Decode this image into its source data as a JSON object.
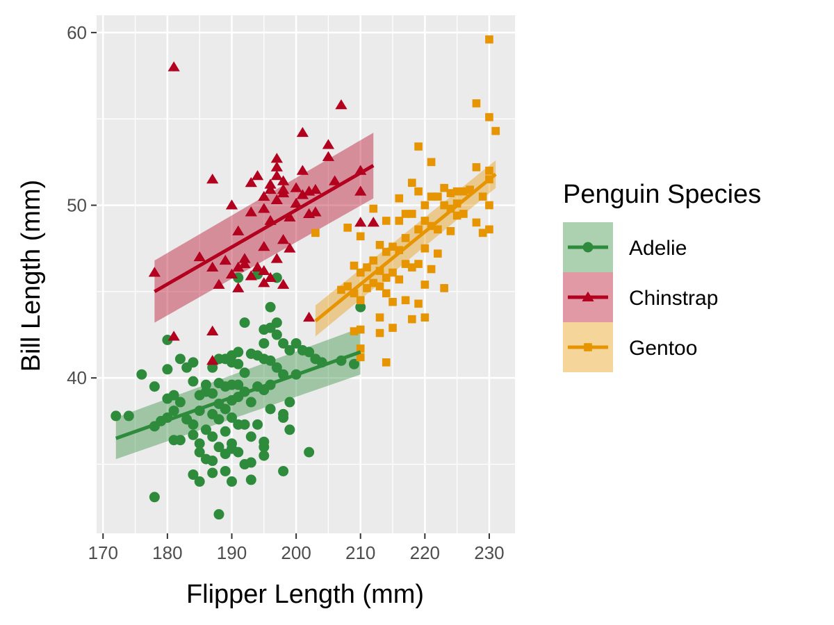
{
  "chart_data": {
    "type": "scatter",
    "xlabel": "Flipper Length (mm)",
    "ylabel": "Bill Length (mm)",
    "xlim": [
      169,
      234
    ],
    "ylim": [
      31,
      61
    ],
    "x_ticks": [
      170,
      180,
      190,
      200,
      210,
      220,
      230
    ],
    "y_ticks": [
      40,
      50,
      60
    ],
    "grid": true,
    "panel_background": "#EBEBEB",
    "legend": {
      "title": "Penguin Species",
      "position": "right"
    },
    "series": [
      {
        "name": "Adelie",
        "color": "#2E8B3C",
        "marker": "circle",
        "trend": {
          "x": [
            172,
            210
          ],
          "y": [
            36.5,
            41.5
          ],
          "ci_lo": [
            35.3,
            40.2
          ],
          "ci_hi": [
            37.7,
            42.9
          ]
        },
        "points": [
          [
            172,
            37.8
          ],
          [
            174,
            37.8
          ],
          [
            176,
            40.2
          ],
          [
            178,
            39.5
          ],
          [
            178,
            37.2
          ],
          [
            178,
            33.1
          ],
          [
            179,
            37.5
          ],
          [
            180,
            40.5
          ],
          [
            180,
            42.2
          ],
          [
            180,
            38.8
          ],
          [
            180,
            37.7
          ],
          [
            181,
            39.0
          ],
          [
            181,
            38.1
          ],
          [
            181,
            36.4
          ],
          [
            182,
            41.1
          ],
          [
            182,
            38.6
          ],
          [
            182,
            36.4
          ],
          [
            183,
            40.6
          ],
          [
            183,
            37.6
          ],
          [
            184,
            40.9
          ],
          [
            184,
            39.8
          ],
          [
            184,
            37.3
          ],
          [
            184,
            36.7
          ],
          [
            184,
            34.4
          ],
          [
            185,
            39.0
          ],
          [
            185,
            38.1
          ],
          [
            185,
            36.2
          ],
          [
            185,
            35.7
          ],
          [
            185,
            34.0
          ],
          [
            186,
            39.6
          ],
          [
            186,
            39.2
          ],
          [
            186,
            37.0
          ],
          [
            186,
            35.3
          ],
          [
            187,
            40.6
          ],
          [
            187,
            39.1
          ],
          [
            187,
            37.9
          ],
          [
            187,
            36.6
          ],
          [
            187,
            35.2
          ],
          [
            187,
            34.5
          ],
          [
            188,
            41.1
          ],
          [
            188,
            39.7
          ],
          [
            188,
            38.5
          ],
          [
            188,
            37.6
          ],
          [
            188,
            36.0
          ],
          [
            188,
            32.1
          ],
          [
            189,
            41.1
          ],
          [
            189,
            39.5
          ],
          [
            189,
            38.2
          ],
          [
            189,
            36.9
          ],
          [
            189,
            35.6
          ],
          [
            189,
            34.6
          ],
          [
            190,
            41.3
          ],
          [
            190,
            40.9
          ],
          [
            190,
            39.6
          ],
          [
            190,
            38.7
          ],
          [
            190,
            37.7
          ],
          [
            190,
            36.2
          ],
          [
            190,
            35.9
          ],
          [
            190,
            34.0
          ],
          [
            191,
            41.5
          ],
          [
            191,
            40.8
          ],
          [
            191,
            39.6
          ],
          [
            191,
            38.9
          ],
          [
            191,
            37.3
          ],
          [
            191,
            35.7
          ],
          [
            191,
            45.8
          ],
          [
            192,
            43.2
          ],
          [
            192,
            40.3
          ],
          [
            192,
            39.2
          ],
          [
            192,
            37.3
          ],
          [
            192,
            35.0
          ],
          [
            193,
            41.4
          ],
          [
            193,
            38.6
          ],
          [
            193,
            36.6
          ],
          [
            193,
            35.1
          ],
          [
            193,
            34.1
          ],
          [
            194,
            41.3
          ],
          [
            194,
            39.5
          ],
          [
            194,
            37.3
          ],
          [
            194,
            46.0
          ],
          [
            195,
            42.8
          ],
          [
            195,
            42.0
          ],
          [
            195,
            41.1
          ],
          [
            195,
            39.3
          ],
          [
            195,
            36.3
          ],
          [
            195,
            35.5
          ],
          [
            195,
            36.0
          ],
          [
            196,
            44.1
          ],
          [
            196,
            42.9
          ],
          [
            196,
            41.0
          ],
          [
            196,
            39.6
          ],
          [
            196,
            38.2
          ],
          [
            197,
            43.2
          ],
          [
            197,
            42.5
          ],
          [
            197,
            40.6
          ],
          [
            197,
            45.8
          ],
          [
            198,
            42.0
          ],
          [
            198,
            40.2
          ],
          [
            198,
            37.9
          ],
          [
            198,
            37.7
          ],
          [
            198,
            34.6
          ],
          [
            199,
            41.6
          ],
          [
            199,
            38.6
          ],
          [
            199,
            37.0
          ],
          [
            200,
            42.0
          ],
          [
            200,
            40.2
          ],
          [
            201,
            41.6
          ],
          [
            202,
            41.5
          ],
          [
            202,
            35.7
          ],
          [
            203,
            41.1
          ],
          [
            204,
            40.9
          ],
          [
            207,
            41.0
          ],
          [
            209,
            40.8
          ],
          [
            210,
            44.1
          ]
        ]
      },
      {
        "name": "Chinstrap",
        "color": "#B2001E",
        "marker": "triangle",
        "trend": {
          "x": [
            178,
            212
          ],
          "y": [
            45.0,
            52.3
          ],
          "ci_lo": [
            43.2,
            50.4
          ],
          "ci_hi": [
            46.8,
            54.2
          ]
        },
        "points": [
          [
            178,
            46.1
          ],
          [
            181,
            58.0
          ],
          [
            181,
            42.4
          ],
          [
            185,
            47.0
          ],
          [
            187,
            51.5
          ],
          [
            187,
            46.4
          ],
          [
            187,
            42.7
          ],
          [
            187,
            41.0
          ],
          [
            188,
            45.4
          ],
          [
            189,
            46.8
          ],
          [
            190,
            50.0
          ],
          [
            190,
            46.0
          ],
          [
            191,
            48.5
          ],
          [
            191,
            46.4
          ],
          [
            191,
            45.2
          ],
          [
            192,
            46.6
          ],
          [
            192,
            46.9
          ],
          [
            193,
            51.3
          ],
          [
            193,
            49.6
          ],
          [
            193,
            45.9
          ],
          [
            194,
            51.7
          ],
          [
            194,
            46.4
          ],
          [
            195,
            50.5
          ],
          [
            195,
            49.8
          ],
          [
            195,
            47.6
          ],
          [
            195,
            45.5
          ],
          [
            195,
            46.2
          ],
          [
            196,
            51.2
          ],
          [
            196,
            50.9
          ],
          [
            196,
            45.8
          ],
          [
            196,
            49.1
          ],
          [
            197,
            52.7
          ],
          [
            197,
            52.2
          ],
          [
            197,
            51.7
          ],
          [
            197,
            50.3
          ],
          [
            197,
            46.9
          ],
          [
            198,
            51.4
          ],
          [
            198,
            50.7
          ],
          [
            198,
            48.0
          ],
          [
            198,
            45.4
          ],
          [
            198,
            50.9
          ],
          [
            199,
            49.3
          ],
          [
            199,
            47.5
          ],
          [
            200,
            51.0
          ],
          [
            200,
            50.1
          ],
          [
            201,
            54.2
          ],
          [
            201,
            50.6
          ],
          [
            201,
            52.0
          ],
          [
            202,
            50.8
          ],
          [
            202,
            49.5
          ],
          [
            202,
            43.5
          ],
          [
            203,
            50.9
          ],
          [
            203,
            49.6
          ],
          [
            205,
            53.5
          ],
          [
            205,
            52.8
          ],
          [
            206,
            51.4
          ],
          [
            207,
            55.8
          ],
          [
            210,
            52.0
          ],
          [
            210,
            50.8
          ],
          [
            210,
            49.0
          ],
          [
            212,
            49.0
          ]
        ]
      },
      {
        "name": "Gentoo",
        "color": "#E69500",
        "marker": "square",
        "trend": {
          "x": [
            203,
            231
          ],
          "y": [
            43.3,
            51.8
          ],
          "ci_lo": [
            42.4,
            51.0
          ],
          "ci_hi": [
            44.2,
            52.6
          ]
        },
        "points": [
          [
            203,
            48.4
          ],
          [
            207,
            45.1
          ],
          [
            208,
            48.7
          ],
          [
            208,
            45.3
          ],
          [
            209,
            46.5
          ],
          [
            209,
            44.9
          ],
          [
            209,
            42.7
          ],
          [
            210,
            48.2
          ],
          [
            210,
            46.1
          ],
          [
            210,
            44.5
          ],
          [
            210,
            42.8
          ],
          [
            210,
            41.7
          ],
          [
            210,
            41.2
          ],
          [
            211,
            46.4
          ],
          [
            211,
            45.2
          ],
          [
            212,
            49.8
          ],
          [
            212,
            46.8
          ],
          [
            212,
            45.5
          ],
          [
            213,
            47.7
          ],
          [
            213,
            46.2
          ],
          [
            213,
            45.3
          ],
          [
            213,
            43.5
          ],
          [
            213,
            42.6
          ],
          [
            214,
            49.1
          ],
          [
            214,
            47.3
          ],
          [
            214,
            45.8
          ],
          [
            214,
            44.9
          ],
          [
            214,
            40.9
          ],
          [
            215,
            47.6
          ],
          [
            215,
            46.1
          ],
          [
            215,
            44.4
          ],
          [
            215,
            42.9
          ],
          [
            216,
            50.4
          ],
          [
            216,
            49.1
          ],
          [
            216,
            47.4
          ],
          [
            216,
            45.7
          ],
          [
            217,
            49.5
          ],
          [
            217,
            48.1
          ],
          [
            217,
            46.6
          ],
          [
            217,
            44.5
          ],
          [
            218,
            51.3
          ],
          [
            218,
            49.5
          ],
          [
            218,
            46.4
          ],
          [
            218,
            43.4
          ],
          [
            219,
            53.4
          ],
          [
            219,
            50.8
          ],
          [
            219,
            48.6
          ],
          [
            219,
            46.6
          ],
          [
            219,
            44.3
          ],
          [
            220,
            50.0
          ],
          [
            220,
            49.1
          ],
          [
            220,
            47.5
          ],
          [
            220,
            45.4
          ],
          [
            220,
            43.5
          ],
          [
            221,
            52.5
          ],
          [
            221,
            50.5
          ],
          [
            221,
            48.8
          ],
          [
            221,
            46.3
          ],
          [
            222,
            50.5
          ],
          [
            222,
            48.6
          ],
          [
            222,
            47.2
          ],
          [
            223,
            51.0
          ],
          [
            223,
            50.0
          ],
          [
            223,
            45.2
          ],
          [
            224,
            50.7
          ],
          [
            224,
            49.8
          ],
          [
            224,
            48.5
          ],
          [
            225,
            50.8
          ],
          [
            225,
            50.1
          ],
          [
            225,
            49.4
          ],
          [
            226,
            50.8
          ],
          [
            226,
            49.5
          ],
          [
            227,
            50.9
          ],
          [
            228,
            55.9
          ],
          [
            228,
            52.2
          ],
          [
            228,
            49.0
          ],
          [
            229,
            50.5
          ],
          [
            229,
            48.4
          ],
          [
            230,
            59.6
          ],
          [
            230,
            55.1
          ],
          [
            230,
            52.0
          ],
          [
            230,
            51.5
          ],
          [
            230,
            50.0
          ],
          [
            230,
            48.6
          ],
          [
            231,
            54.3
          ]
        ]
      }
    ]
  }
}
